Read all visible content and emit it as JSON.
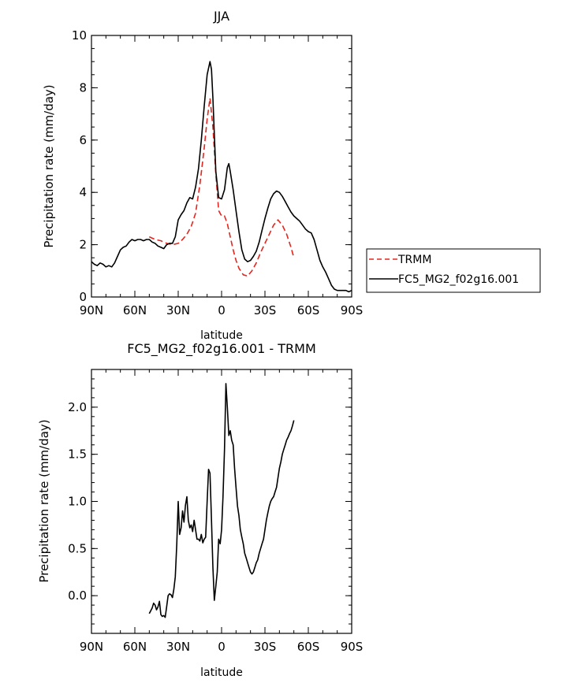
{
  "chart_data": [
    {
      "type": "line",
      "title": "JJA",
      "xlabel": "latitude",
      "ylabel": "Precipitation rate (mm/day)",
      "xlim": [
        90,
        -90
      ],
      "ylim": [
        0,
        10
      ],
      "x_ticks": [
        {
          "value": 90,
          "label": "90N"
        },
        {
          "value": 60,
          "label": "60N"
        },
        {
          "value": 30,
          "label": "30N"
        },
        {
          "value": 0,
          "label": "0"
        },
        {
          "value": -30,
          "label": "30S"
        },
        {
          "value": -60,
          "label": "60S"
        },
        {
          "value": -90,
          "label": "90S"
        }
      ],
      "y_ticks": [
        {
          "value": 0,
          "label": "0"
        },
        {
          "value": 2,
          "label": "2"
        },
        {
          "value": 4,
          "label": "4"
        },
        {
          "value": 6,
          "label": "6"
        },
        {
          "value": 8,
          "label": "8"
        },
        {
          "value": 10,
          "label": "10"
        }
      ],
      "legend_position": "right",
      "series": [
        {
          "name": "TRMM",
          "color": "#e3261f",
          "dash": "dashed",
          "x": [
            50,
            46,
            42,
            38,
            34,
            30,
            27,
            24,
            21,
            18,
            15,
            12,
            10,
            8,
            6,
            4,
            2,
            0,
            -2,
            -4,
            -6,
            -8,
            -10,
            -12,
            -15,
            -18,
            -21,
            -24,
            -27,
            -30,
            -33,
            -36,
            -39,
            -42,
            -45,
            -48,
            -50
          ],
          "values": [
            2.3,
            2.2,
            2.15,
            2.05,
            2.0,
            2.05,
            2.2,
            2.4,
            2.7,
            3.2,
            4.3,
            5.7,
            6.8,
            7.6,
            6.5,
            4.7,
            3.3,
            3.1,
            3.1,
            2.8,
            2.3,
            1.8,
            1.4,
            1.1,
            0.85,
            0.8,
            1.0,
            1.3,
            1.7,
            2.05,
            2.4,
            2.75,
            2.95,
            2.75,
            2.4,
            1.9,
            1.5
          ]
        },
        {
          "name": "FC5_MG2_f02g16.001",
          "color": "#000000",
          "dash": "solid",
          "x": [
            90,
            88,
            86,
            84,
            82,
            80,
            78,
            76,
            74,
            72,
            70,
            68,
            66,
            64,
            62,
            60,
            58,
            56,
            54,
            52,
            50,
            48,
            46,
            44,
            42,
            40,
            38,
            36,
            34,
            32,
            30,
            28,
            26,
            24,
            22,
            20,
            18,
            16,
            14,
            12,
            10,
            8,
            7,
            6,
            4,
            2,
            0,
            -2,
            -4,
            -5,
            -6,
            -8,
            -10,
            -12,
            -14,
            -16,
            -18,
            -20,
            -22,
            -24,
            -26,
            -28,
            -30,
            -32,
            -34,
            -36,
            -38,
            -40,
            -42,
            -44,
            -46,
            -48,
            -50,
            -52,
            -54,
            -56,
            -58,
            -60,
            -62,
            -64,
            -66,
            -68,
            -70,
            -72,
            -74,
            -76,
            -78,
            -80,
            -82,
            -84,
            -86,
            -88,
            -90
          ],
          "values": [
            1.35,
            1.25,
            1.2,
            1.3,
            1.25,
            1.15,
            1.2,
            1.15,
            1.3,
            1.55,
            1.8,
            1.9,
            1.95,
            2.1,
            2.2,
            2.15,
            2.2,
            2.2,
            2.15,
            2.2,
            2.2,
            2.1,
            2.05,
            1.95,
            1.9,
            1.85,
            2.0,
            2.05,
            2.05,
            2.3,
            2.95,
            3.15,
            3.3,
            3.6,
            3.8,
            3.75,
            4.2,
            4.9,
            6.0,
            7.3,
            8.5,
            9.0,
            8.7,
            7.6,
            4.8,
            3.8,
            3.75,
            4.1,
            4.95,
            5.1,
            4.8,
            4.1,
            3.3,
            2.5,
            1.8,
            1.45,
            1.35,
            1.4,
            1.55,
            1.75,
            2.1,
            2.55,
            3.0,
            3.4,
            3.75,
            3.95,
            4.05,
            4.0,
            3.85,
            3.65,
            3.45,
            3.25,
            3.1,
            3.0,
            2.9,
            2.75,
            2.6,
            2.5,
            2.45,
            2.2,
            1.8,
            1.4,
            1.15,
            0.95,
            0.7,
            0.45,
            0.3,
            0.25,
            0.25,
            0.25,
            0.25,
            0.2,
            0.25
          ]
        }
      ]
    },
    {
      "type": "line",
      "title": "FC5_MG2_f02g16.001 - TRMM",
      "xlabel": "latitude",
      "ylabel": "Precipitation rate (mm/day)",
      "xlim": [
        90,
        -90
      ],
      "ylim": [
        -0.4,
        2.4
      ],
      "x_ticks": [
        {
          "value": 90,
          "label": "90N"
        },
        {
          "value": 60,
          "label": "60N"
        },
        {
          "value": 30,
          "label": "30N"
        },
        {
          "value": 0,
          "label": "0"
        },
        {
          "value": -30,
          "label": "30S"
        },
        {
          "value": -60,
          "label": "60S"
        },
        {
          "value": -90,
          "label": "90S"
        }
      ],
      "y_ticks": [
        {
          "value": 0,
          "label": "0.0"
        },
        {
          "value": 0.5,
          "label": "0.5"
        },
        {
          "value": 1.0,
          "label": "1.0"
        },
        {
          "value": 1.5,
          "label": "1.5"
        },
        {
          "value": 2.0,
          "label": "2.0"
        }
      ],
      "series": [
        {
          "name": "FC5_MG2_f02g16.001 - TRMM",
          "color": "#000000",
          "dash": "solid",
          "x": [
            50,
            48,
            47,
            46,
            45,
            44,
            43,
            42,
            41,
            40,
            39,
            38,
            37,
            36,
            35,
            34,
            33,
            32,
            31,
            30,
            29,
            28,
            27,
            26,
            25,
            24,
            23,
            22,
            21,
            20,
            19,
            18,
            17,
            16,
            15,
            14,
            13,
            12,
            11,
            10,
            9,
            8,
            7,
            6,
            5,
            4,
            3,
            2,
            1,
            0,
            -1,
            -2,
            -3,
            -4,
            -5,
            -6,
            -7,
            -8,
            -9,
            -10,
            -11,
            -12,
            -13,
            -14,
            -15,
            -16,
            -17,
            -18,
            -19,
            -20,
            -21,
            -22,
            -23,
            -24,
            -25,
            -26,
            -27,
            -28,
            -29,
            -30,
            -31,
            -32,
            -33,
            -34,
            -35,
            -36,
            -37,
            -38,
            -39,
            -40,
            -41,
            -42,
            -43,
            -44,
            -45,
            -46,
            -47,
            -48,
            -49,
            -50
          ],
          "values": [
            -0.19,
            -0.13,
            -0.08,
            -0.1,
            -0.15,
            -0.12,
            -0.06,
            -0.2,
            -0.22,
            -0.21,
            -0.23,
            -0.12,
            0.0,
            0.02,
            0.01,
            -0.02,
            0.07,
            0.2,
            0.55,
            1.0,
            0.65,
            0.72,
            0.9,
            0.78,
            0.96,
            1.05,
            0.8,
            0.72,
            0.75,
            0.68,
            0.8,
            0.7,
            0.6,
            0.6,
            0.58,
            0.65,
            0.56,
            0.6,
            0.62,
            1.0,
            1.34,
            1.3,
            0.8,
            0.3,
            -0.05,
            0.1,
            0.25,
            0.6,
            0.55,
            0.7,
            1.05,
            1.55,
            2.25,
            2.0,
            1.7,
            1.75,
            1.65,
            1.6,
            1.35,
            1.15,
            0.95,
            0.85,
            0.7,
            0.62,
            0.55,
            0.45,
            0.4,
            0.35,
            0.3,
            0.25,
            0.23,
            0.25,
            0.3,
            0.35,
            0.38,
            0.45,
            0.5,
            0.55,
            0.6,
            0.7,
            0.8,
            0.88,
            0.95,
            1.0,
            1.03,
            1.05,
            1.1,
            1.15,
            1.25,
            1.35,
            1.42,
            1.5,
            1.55,
            1.6,
            1.65,
            1.68,
            1.72,
            1.75,
            1.8,
            1.86
          ]
        }
      ]
    }
  ]
}
